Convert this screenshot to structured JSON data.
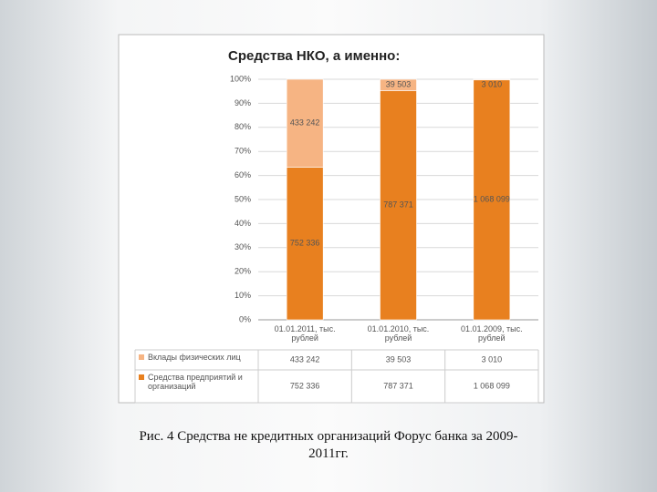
{
  "chart_data": {
    "type": "stacked_bar_100",
    "title": "Средства НКО, а именно:",
    "categories": [
      "01.01.2011, тыс. рублей",
      "01.01.2010, тыс. рублей",
      "01.01.2009, тыс. рублей"
    ],
    "series": [
      {
        "name": "Средства предприятий и организаций",
        "color": "#e8801f",
        "values": [
          752336,
          787371,
          1068099
        ],
        "value_labels": [
          "752 336",
          "787 371",
          "1 068 099"
        ]
      },
      {
        "name": "Вклады физических лиц",
        "color": "#f6b483",
        "values": [
          433242,
          39503,
          3010
        ],
        "value_labels": [
          "433 242",
          "39 503",
          "3 010"
        ]
      }
    ],
    "ylim": [
      0,
      100
    ],
    "yticks": [
      {
        "value": 0,
        "label": "0%"
      },
      {
        "value": 10,
        "label": "10%"
      },
      {
        "value": 20,
        "label": "20%"
      },
      {
        "value": 30,
        "label": "30%"
      },
      {
        "value": 40,
        "label": "40%"
      },
      {
        "value": 50,
        "label": "50%"
      },
      {
        "value": 60,
        "label": "60%"
      },
      {
        "value": 70,
        "label": "70%"
      },
      {
        "value": 80,
        "label": "80%"
      },
      {
        "value": 90,
        "label": "90%"
      },
      {
        "value": 100,
        "label": "100%"
      }
    ],
    "grid": true
  },
  "caption": "Рис. 4 Средства не кредитных организаций Форус банка за 2009-2011гг."
}
